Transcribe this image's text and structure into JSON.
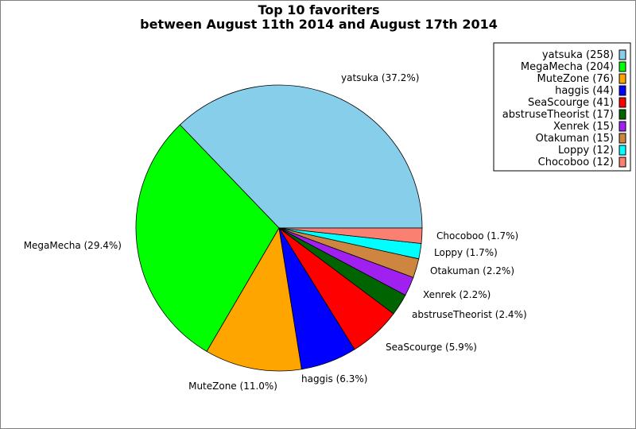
{
  "chart_data": {
    "type": "pie",
    "title": "Top 10 favoriters",
    "subtitle": "between August 11th 2014 and August 17th 2014",
    "legend_position": "top-right",
    "start_angle_deg": 0,
    "direction": "counterclockwise",
    "slices": [
      {
        "name": "yatsuka",
        "value": 258,
        "percent_label": "yatsuka (37.2%)",
        "legend_label": "yatsuka (258)",
        "color": "#87ceeb"
      },
      {
        "name": "MegaMecha",
        "value": 204,
        "percent_label": "MegaMecha (29.4%)",
        "legend_label": "MegaMecha (204)",
        "color": "#00ff00"
      },
      {
        "name": "MuteZone",
        "value": 76,
        "percent_label": "MuteZone (11.0%)",
        "legend_label": "MuteZone (76)",
        "color": "#ffa500"
      },
      {
        "name": "haggis",
        "value": 44,
        "percent_label": "haggis (6.3%)",
        "legend_label": "haggis (44)",
        "color": "#0000ff"
      },
      {
        "name": "SeaScourge",
        "value": 41,
        "percent_label": "SeaScourge (5.9%)",
        "legend_label": "SeaScourge (41)",
        "color": "#ff0000"
      },
      {
        "name": "abstruseTheorist",
        "value": 17,
        "percent_label": "abstruseTheorist (2.4%)",
        "legend_label": "abstruseTheorist (17)",
        "color": "#006400"
      },
      {
        "name": "Xenrek",
        "value": 15,
        "percent_label": "Xenrek (2.2%)",
        "legend_label": "Xenrek (15)",
        "color": "#a020f0"
      },
      {
        "name": "Otakuman",
        "value": 15,
        "percent_label": "Otakuman (2.2%)",
        "legend_label": "Otakuman (15)",
        "color": "#cd853f"
      },
      {
        "name": "Loppy",
        "value": 12,
        "percent_label": "Loppy (1.7%)",
        "legend_label": "Loppy (12)",
        "color": "#00ffff"
      },
      {
        "name": "Chocoboo",
        "value": 12,
        "percent_label": "Chocoboo (1.7%)",
        "legend_label": "Chocoboo (12)",
        "color": "#fa8072"
      }
    ]
  }
}
